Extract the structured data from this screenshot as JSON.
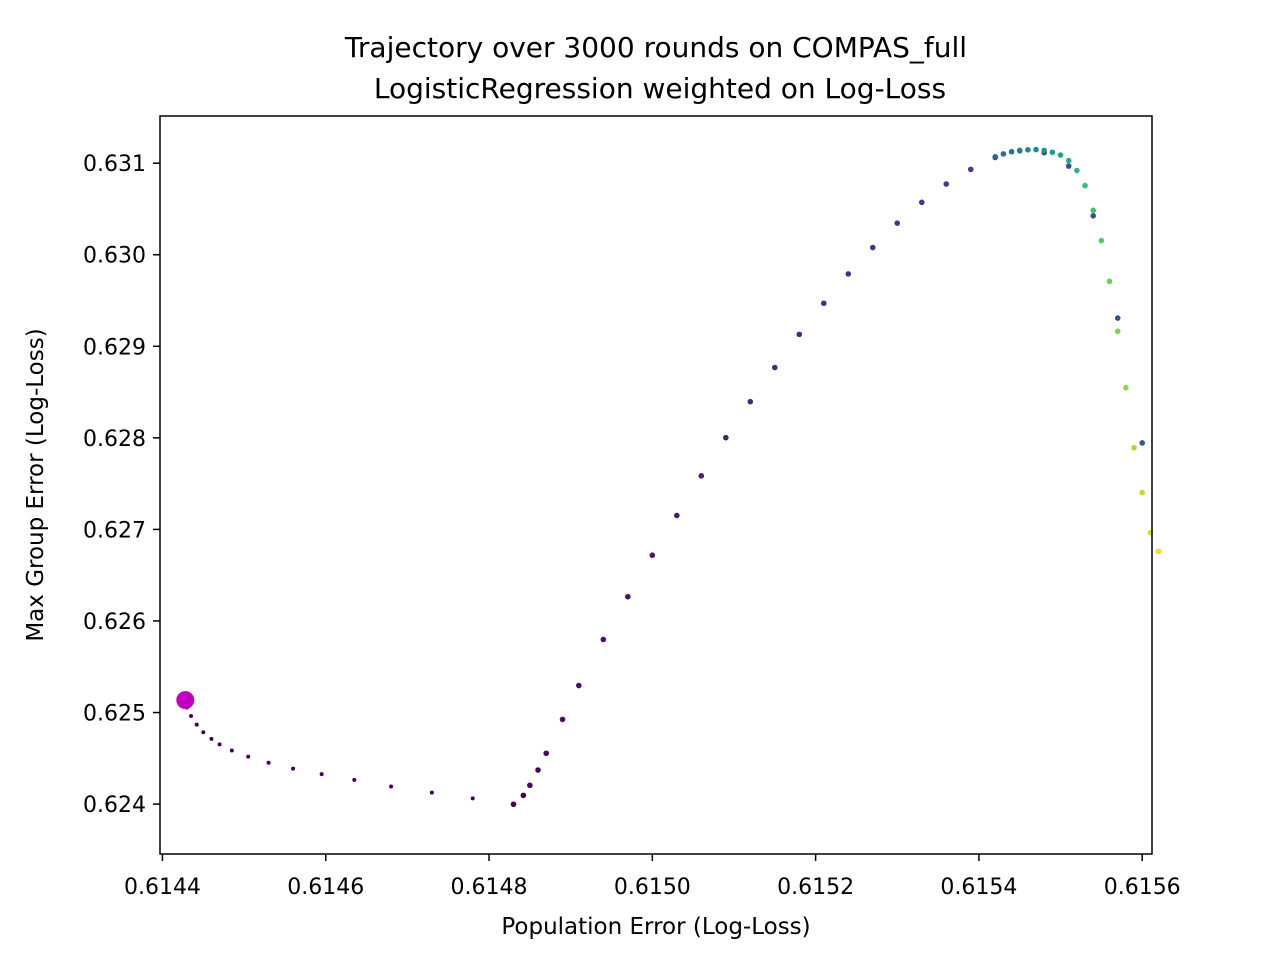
{
  "chart_data": {
    "type": "scatter",
    "title": "Trajectory over 3000 rounds on COMPAS_full",
    "subtitle": "LogisticRegression weighted on Log-Loss",
    "xlabel": "Population Error (Log-Loss)",
    "ylabel": "Max Group Error (Log-Loss)",
    "xlim": [
      0.614397,
      0.615612
    ],
    "ylim": [
      0.623455,
      0.631515
    ],
    "x_ticks": [
      "0.6144",
      "0.6146",
      "0.6148",
      "0.6150",
      "0.6152",
      "0.6154",
      "0.6156"
    ],
    "x_tick_values": [
      0.6144,
      0.6146,
      0.6148,
      0.615,
      0.6152,
      0.6154,
      0.6156
    ],
    "y_ticks": [
      "0.624",
      "0.625",
      "0.626",
      "0.627",
      "0.628",
      "0.629",
      "0.630",
      "0.631"
    ],
    "y_tick_values": [
      0.624,
      0.625,
      0.626,
      0.627,
      0.628,
      0.629,
      0.63,
      0.631
    ],
    "grid": false,
    "colormap": "viridis",
    "start_point": {
      "x": 0.614428,
      "y": 0.625136,
      "color": "#c000c0"
    },
    "series": [
      {
        "rounds": 3000,
        "x": [
          0.614428,
          0.61443,
          0.614435,
          0.614442,
          0.61445,
          0.61446,
          0.61447,
          0.614485,
          0.614505,
          0.61453,
          0.61456,
          0.614595,
          0.614635,
          0.61468,
          0.61473,
          0.61478,
          0.61483,
          0.614842,
          0.61485,
          0.61486,
          0.61487,
          0.61489,
          0.61491,
          0.61494,
          0.61497,
          0.615,
          0.61503,
          0.61506,
          0.61509,
          0.61512,
          0.61515,
          0.61518,
          0.61521,
          0.61524,
          0.61527,
          0.6153,
          0.61533,
          0.61536,
          0.61539,
          0.61542,
          0.61545,
          0.61548,
          0.61551,
          0.61554,
          0.61557,
          0.6156,
          0.61562,
          0.61542,
          0.61543,
          0.61544,
          0.61545,
          0.61546,
          0.61547,
          0.61548,
          0.61549,
          0.6155,
          0.61551,
          0.61552,
          0.61553,
          0.61554,
          0.61555,
          0.61556,
          0.61557,
          0.61558,
          0.61559,
          0.6156,
          0.61561,
          0.61562
        ],
        "y": [
          0.625136,
          0.625055,
          0.624962,
          0.624868,
          0.624784,
          0.624712,
          0.624652,
          0.624585,
          0.624518,
          0.624452,
          0.624388,
          0.624328,
          0.624265,
          0.624192,
          0.624125,
          0.624063,
          0.623998,
          0.624095,
          0.624205,
          0.624372,
          0.624555,
          0.624925,
          0.625295,
          0.625798,
          0.626265,
          0.626718,
          0.627152,
          0.627585,
          0.628002,
          0.628395,
          0.628768,
          0.62913,
          0.62947,
          0.62979,
          0.630078,
          0.630345,
          0.630572,
          0.630772,
          0.630932,
          0.631062,
          0.631135,
          0.631115,
          0.630968,
          0.630425,
          0.629308,
          0.627945,
          0.62676,
          0.631069,
          0.631101,
          0.631125,
          0.631139,
          0.631146,
          0.631148,
          0.631139,
          0.631119,
          0.631089,
          0.631028,
          0.630919,
          0.630755,
          0.630485,
          0.630154,
          0.629709,
          0.629164,
          0.628548,
          0.627892,
          0.627402,
          0.626964,
          0.62676
        ]
      }
    ]
  }
}
